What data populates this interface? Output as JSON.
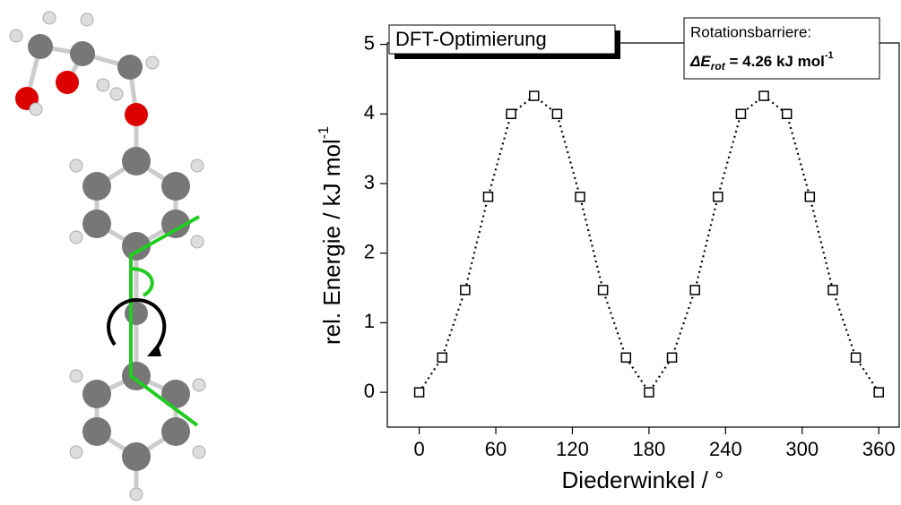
{
  "chart_data": {
    "type": "line",
    "annotation": "DFT-Optimierung",
    "barrier_title": "Rotationsbarriere:",
    "barrier_parts": [
      "ΔE",
      "rot",
      " = 4.26 kJ mol",
      "-1"
    ],
    "xlabel": "Diederwinkel / °",
    "ylabel_parts": [
      "rel. Energie / kJ mol",
      "-1"
    ],
    "x": [
      0,
      18,
      36,
      54,
      72,
      90,
      108,
      126,
      144,
      162,
      180,
      198,
      216,
      234,
      252,
      270,
      288,
      306,
      324,
      342,
      360
    ],
    "values": [
      0,
      0.5,
      1.47,
      2.81,
      4.0,
      4.26,
      4.0,
      2.81,
      1.47,
      0.5,
      0,
      0.5,
      1.47,
      2.81,
      4.0,
      4.26,
      4.0,
      2.81,
      1.47,
      0.5,
      0
    ],
    "color": "#000000",
    "xlim": [
      -25,
      376
    ],
    "ylim": [
      -0.5,
      5.02
    ],
    "xticks": [
      0,
      60,
      120,
      180,
      240,
      300,
      360
    ],
    "yticks": [
      0,
      1,
      2,
      3,
      4,
      5
    ]
  }
}
